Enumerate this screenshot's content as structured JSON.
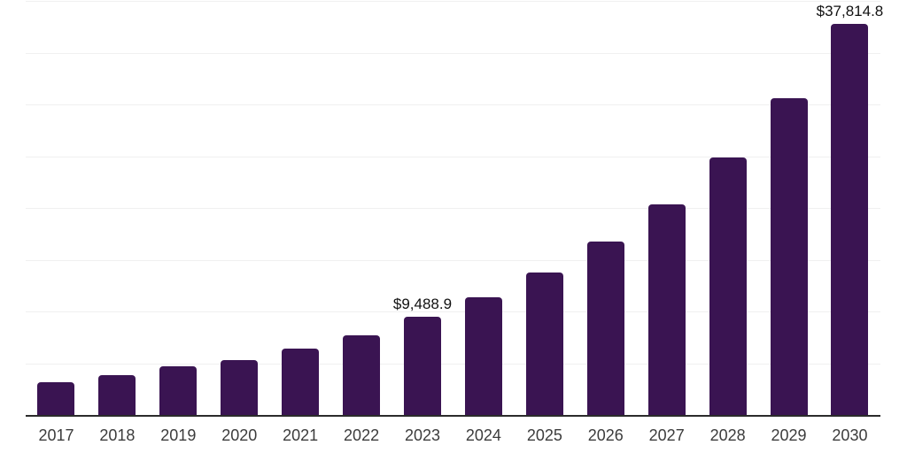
{
  "chart_data": {
    "type": "bar",
    "title": "",
    "xlabel": "",
    "ylabel": "",
    "categories": [
      "2017",
      "2018",
      "2019",
      "2020",
      "2021",
      "2022",
      "2023",
      "2024",
      "2025",
      "2026",
      "2027",
      "2028",
      "2029",
      "2030"
    ],
    "values": [
      3200,
      3890,
      4700,
      5340,
      6450,
      7700,
      9488.9,
      11350,
      13800,
      16740,
      20330,
      24890,
      30580,
      37814.8
    ],
    "labeled_points": [
      {
        "category": "2023",
        "label": "$9,488.9"
      },
      {
        "category": "2030",
        "label": "$37,814.8"
      }
    ],
    "ylim": [
      0,
      40000
    ],
    "gridline_interval": 5000,
    "grid": true,
    "y_axis_tick_labels_visible": false,
    "legend": false,
    "bar_color": "#3a1452",
    "axis_line_color": "#2b2b2b",
    "gridline_color": "#f0f0f0",
    "value_label_color": "#111111",
    "tick_label_color": "#3c3c3c",
    "background_color": "#ffffff"
  }
}
